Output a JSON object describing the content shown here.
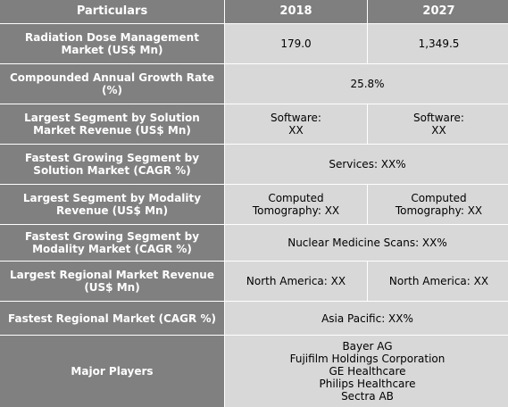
{
  "headers": [
    "Particulars",
    "2018",
    "2027"
  ],
  "rows": [
    {
      "label": "Radiation Dose Management\nMarket (US$ Mn)",
      "v2018": "179.0",
      "v2027": "1,349.5"
    },
    {
      "label": "Compounded Annual Growth Rate\n(%)",
      "merged": "25.8%"
    },
    {
      "label": "Largest Segment by Solution\nMarket Revenue (US$ Mn)",
      "v2018": "Software:\nXX",
      "v2027": "Software:\nXX"
    },
    {
      "label": "Fastest Growing Segment by\nSolution Market (CAGR %)",
      "merged": "Services:  XX%"
    },
    {
      "label": "Largest Segment by Modality\nRevenue (US$ Mn)",
      "v2018": "Computed\nTomography: XX",
      "v2027": "Computed\nTomography:  XX"
    },
    {
      "label": "Fastest Growing Segment by\nModality Market (CAGR %)",
      "merged": "Nuclear Medicine Scans:  XX%"
    },
    {
      "label": "Largest Regional Market Revenue\n(US$ Mn)",
      "v2018": "North America: XX",
      "v2027": "North America: XX"
    },
    {
      "label": "Fastest Regional Market (CAGR %)",
      "merged": "Asia Pacific: XX%"
    }
  ],
  "major_players": {
    "label": "Major Players",
    "items": [
      "Bayer AG",
      "Fujifilm Holdings Corporation",
      "GE Healthcare",
      "Philips Healthcare",
      "Sectra AB"
    ]
  }
}
